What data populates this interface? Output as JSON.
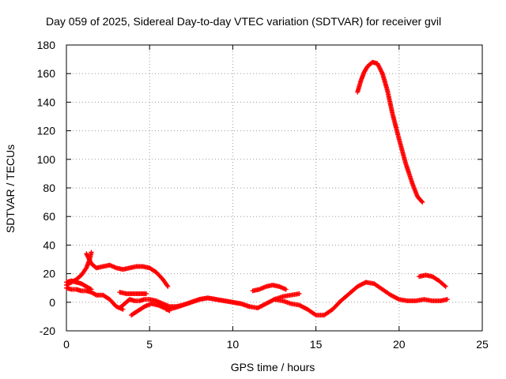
{
  "chart_data": {
    "type": "scatter",
    "title": "Day 059 of 2025, Sidereal Day-to-day VTEC variation (SDTVAR) for receiver gvil",
    "xlabel": "GPS time / hours",
    "ylabel": "SDTVAR / TECUs",
    "xlim": [
      0,
      25
    ],
    "ylim": [
      -20,
      180
    ],
    "x_ticks": [
      "0",
      "5",
      "10",
      "15",
      "20",
      "25"
    ],
    "y_ticks": [
      "-20",
      "0",
      "20",
      "40",
      "60",
      "80",
      "100",
      "120",
      "140",
      "160",
      "180"
    ],
    "grid": true,
    "marker": "plus",
    "color": "#ff0000",
    "series": [
      {
        "x": [
          0.0,
          0.3,
          0.6,
          0.9,
          1.2,
          1.4,
          1.5
        ],
        "y": [
          12,
          14,
          16,
          19,
          24,
          30,
          35
        ]
      },
      {
        "x": [
          1.2,
          1.5,
          1.8,
          2.2,
          2.6,
          3.0,
          3.4,
          3.8,
          4.2,
          4.6,
          5.0,
          5.4,
          5.8,
          6.1
        ],
        "y": [
          34,
          27,
          24,
          25,
          26,
          24,
          23,
          24,
          25,
          25,
          24,
          21,
          16,
          11
        ]
      },
      {
        "x": [
          0.0,
          0.3,
          0.6,
          0.9,
          1.2,
          1.5
        ],
        "y": [
          14,
          15,
          14,
          13,
          11,
          9
        ]
      },
      {
        "x": [
          0.0,
          0.3,
          0.6,
          0.9,
          1.2,
          1.5,
          1.8,
          2.2,
          2.6,
          3.0,
          3.4
        ],
        "y": [
          10,
          9,
          9,
          8,
          8,
          7,
          5,
          5,
          2,
          -3,
          -5
        ]
      },
      {
        "x": [
          3.2,
          3.5,
          3.8,
          4.1,
          4.4,
          4.7,
          5.0,
          5.4,
          5.8,
          6.2,
          6.6,
          7.0,
          7.5,
          8.0,
          8.5,
          9.0,
          9.5,
          10.0,
          10.5,
          11.0,
          11.5
        ],
        "y": [
          -4,
          -1,
          2,
          1,
          1,
          2,
          2,
          1,
          -1,
          -3,
          -3,
          -2,
          0,
          2,
          3,
          2,
          1,
          0,
          -1,
          -3,
          -4
        ]
      },
      {
        "x": [
          3.2,
          3.6,
          4.0,
          4.4,
          4.8
        ],
        "y": [
          7,
          6,
          6,
          6,
          6
        ]
      },
      {
        "x": [
          3.9,
          4.3,
          4.7,
          5.1,
          5.5,
          5.9,
          6.2
        ],
        "y": [
          -9,
          -6,
          -3,
          -1,
          -2,
          -4,
          -6
        ]
      },
      {
        "x": [
          6.0,
          6.5,
          7.0,
          7.5,
          8.0,
          8.5,
          9.0,
          9.5,
          10.0,
          10.5,
          11.0
        ],
        "y": [
          -5,
          -4,
          -2,
          0,
          2,
          3,
          2,
          1,
          0,
          -1,
          -3
        ]
      },
      {
        "x": [
          11.2,
          11.6,
          12.0,
          12.4,
          12.8,
          13.2
        ],
        "y": [
          8,
          9,
          11,
          12,
          11,
          9
        ]
      },
      {
        "x": [
          11.5,
          12.0,
          12.5,
          13.0,
          13.5,
          14.0
        ],
        "y": [
          -4,
          -1,
          2,
          4,
          5,
          6
        ]
      },
      {
        "x": [
          12.5,
          13.0,
          13.5,
          14.0,
          14.5,
          15.0,
          15.5,
          16.0,
          16.5,
          17.0,
          17.5,
          18.0
        ],
        "y": [
          2,
          1,
          -1,
          -2,
          -5,
          -9,
          -9,
          -5,
          1,
          6,
          11,
          14
        ]
      },
      {
        "x": [
          18.0,
          18.5,
          19.0,
          19.5,
          20.0,
          20.5,
          21.0,
          21.5,
          22.0,
          22.5,
          22.9
        ],
        "y": [
          14,
          13,
          9,
          5,
          2,
          1,
          1,
          2,
          1,
          1,
          2
        ]
      },
      {
        "x": [
          21.2,
          21.6,
          22.0,
          22.4,
          22.8
        ],
        "y": [
          18,
          19,
          18,
          15,
          11
        ]
      },
      {
        "x": [
          17.5,
          17.7,
          17.9,
          18.1,
          18.4,
          18.7,
          19.0,
          19.3,
          19.6,
          20.0,
          20.4,
          20.8,
          21.1,
          21.4
        ],
        "y": [
          147,
          155,
          161,
          165,
          168,
          167,
          160,
          148,
          132,
          114,
          97,
          83,
          74,
          70
        ]
      }
    ]
  }
}
